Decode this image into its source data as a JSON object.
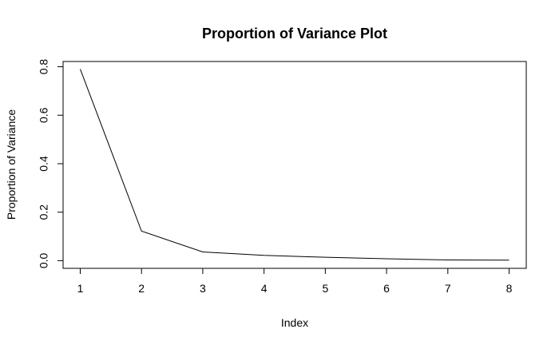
{
  "chart_data": {
    "type": "line",
    "title": "Proportion of Variance Plot",
    "xlabel": "Index",
    "ylabel": "Proportion of Variance",
    "x": [
      1,
      2,
      3,
      4,
      5,
      6,
      7,
      8
    ],
    "series": [
      {
        "values": [
          0.79,
          0.122,
          0.036,
          0.022,
          0.014,
          0.008,
          0.003,
          0.002
        ]
      }
    ],
    "xticks": [
      "1",
      "2",
      "3",
      "4",
      "5",
      "6",
      "7",
      "8"
    ],
    "yticks": [
      "0.0",
      "0.2",
      "0.4",
      "0.6",
      "0.8"
    ],
    "xlim": [
      0.72,
      8.28
    ],
    "ylim": [
      -0.0316,
      0.8216
    ],
    "grid": false,
    "legend": false,
    "line_color": "#000000"
  }
}
